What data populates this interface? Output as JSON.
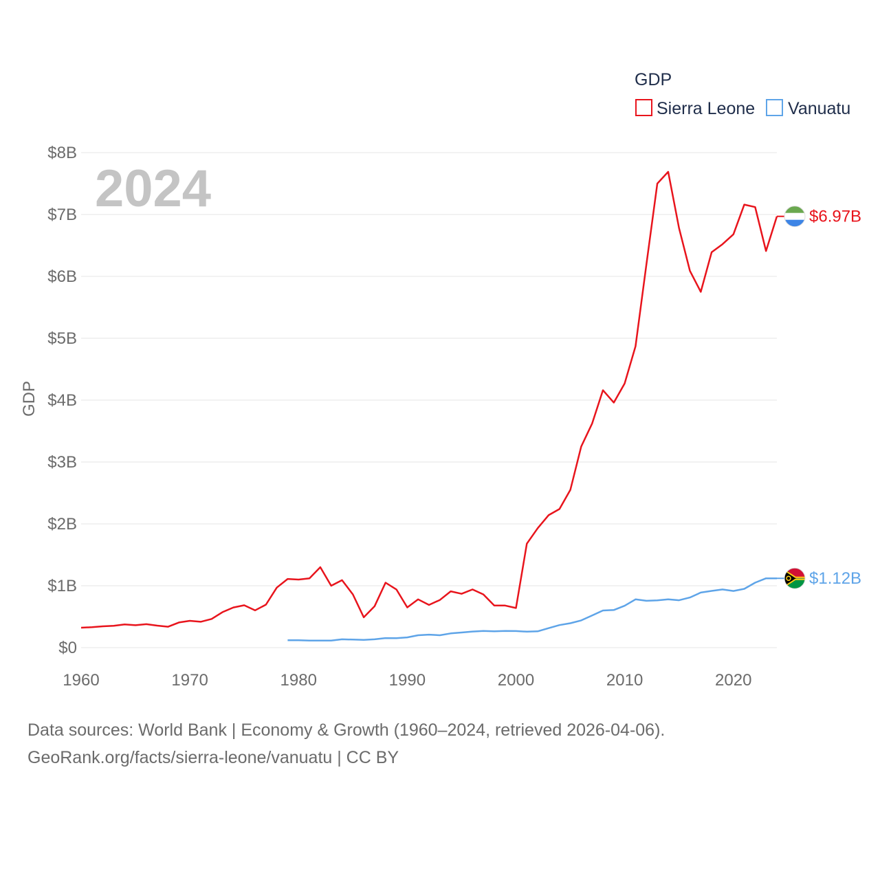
{
  "chart_data": {
    "type": "line",
    "ylabel": "GDP",
    "current_year": "2024",
    "ylim": [
      0,
      8000000000
    ],
    "xlim": [
      1960,
      2024
    ],
    "x_ticks": [
      1960,
      1970,
      1980,
      1990,
      2000,
      2010,
      2020
    ],
    "x_tick_labels": [
      "1960",
      "1970",
      "1980",
      "1990",
      "2000",
      "2010",
      "2020"
    ],
    "y_ticks": [
      0,
      1000000000,
      2000000000,
      3000000000,
      4000000000,
      5000000000,
      6000000000,
      7000000000,
      8000000000
    ],
    "y_tick_labels": [
      "$0",
      "$1B",
      "$2B",
      "$3B",
      "$4B",
      "$5B",
      "$6B",
      "$7B",
      "$8B"
    ],
    "legend": {
      "title": "GDP",
      "position": "top-right"
    },
    "series": [
      {
        "name": "Sierra Leone",
        "color": "#e8141c",
        "end_label": "$6.97B",
        "flag_colors": [
          "#6aa84f",
          "#ffffff",
          "#3d85e6"
        ],
        "x": [
          1960,
          1961,
          1962,
          1963,
          1964,
          1965,
          1966,
          1967,
          1968,
          1969,
          1970,
          1971,
          1972,
          1973,
          1974,
          1975,
          1976,
          1977,
          1978,
          1979,
          1980,
          1981,
          1982,
          1983,
          1984,
          1985,
          1986,
          1987,
          1988,
          1989,
          1990,
          1991,
          1992,
          1993,
          1994,
          1995,
          1996,
          1997,
          1998,
          1999,
          2000,
          2001,
          2002,
          2003,
          2004,
          2005,
          2006,
          2007,
          2008,
          2009,
          2010,
          2011,
          2012,
          2013,
          2014,
          2015,
          2016,
          2017,
          2018,
          2019,
          2020,
          2021,
          2022,
          2023,
          2024
        ],
        "values": [
          322000000,
          330000000,
          345000000,
          352000000,
          374000000,
          362000000,
          379000000,
          356000000,
          338000000,
          407000000,
          433000000,
          418000000,
          463000000,
          573000000,
          649000000,
          684000000,
          602000000,
          695000000,
          970000000,
          1110000000,
          1100000000,
          1120000000,
          1300000000,
          1000000000,
          1090000000,
          860000000,
          490000000,
          670000000,
          1050000000,
          940000000,
          650000000,
          780000000,
          690000000,
          770000000,
          910000000,
          870000000,
          940000000,
          860000000,
          680000000,
          680000000,
          640000000,
          1680000000,
          1930000000,
          2140000000,
          2240000000,
          2550000000,
          3250000000,
          3620000000,
          4160000000,
          3960000000,
          4270000000,
          4870000000,
          6200000000,
          7500000000,
          7690000000,
          6780000000,
          6090000000,
          5750000000,
          6390000000,
          6520000000,
          6680000000,
          7160000000,
          7120000000,
          6410000000,
          6970000000
        ]
      },
      {
        "name": "Vanuatu",
        "color": "#5ea4e8",
        "end_label": "$1.12B",
        "flag_colors": [
          "#d21034",
          "#009543",
          "#000000",
          "#fdce12"
        ],
        "x": [
          1979,
          1980,
          1981,
          1982,
          1983,
          1984,
          1985,
          1986,
          1987,
          1988,
          1989,
          1990,
          1991,
          1992,
          1993,
          1994,
          1995,
          1996,
          1997,
          1998,
          1999,
          2000,
          2001,
          2002,
          2003,
          2004,
          2005,
          2006,
          2007,
          2008,
          2009,
          2010,
          2011,
          2012,
          2013,
          2014,
          2015,
          2016,
          2017,
          2018,
          2019,
          2020,
          2021,
          2022,
          2023,
          2024
        ],
        "values": [
          120000000,
          120000000,
          113000000,
          113000000,
          113000000,
          135000000,
          130000000,
          125000000,
          135000000,
          154000000,
          152000000,
          165000000,
          200000000,
          210000000,
          200000000,
          230000000,
          245000000,
          260000000,
          270000000,
          263000000,
          270000000,
          268000000,
          258000000,
          263000000,
          314000000,
          364000000,
          394000000,
          440000000,
          520000000,
          600000000,
          608000000,
          677000000,
          780000000,
          757000000,
          764000000,
          780000000,
          766000000,
          810000000,
          890000000,
          917000000,
          940000000,
          915000000,
          950000000,
          1050000000,
          1120000000,
          1120000000
        ]
      }
    ]
  },
  "footer": {
    "line1": "Data sources: World Bank | Economy & Growth (1960–2024, retrieved 2026-04-06).",
    "line2": "GeoRank.org/facts/sierra-leone/vanuatu | CC BY"
  }
}
